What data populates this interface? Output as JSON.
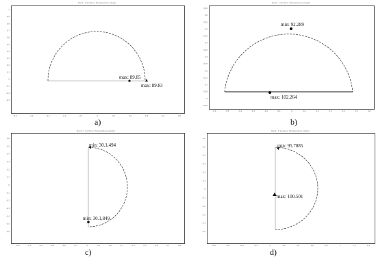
{
  "panels": [
    {
      "id": "a",
      "caption": "a)",
      "title": "Rank: 1  Surface: Temperature (degC)",
      "yticks": [
        "1",
        "0.9",
        "0.8",
        "0.7",
        "0.6",
        "0.5",
        "0.4",
        "0.3",
        "0.2",
        "0.1",
        "0",
        "-0.1",
        "-0.2",
        "-0.3"
      ],
      "xticks": [
        "-0.5",
        "-0.4",
        "-0.3",
        "-0.2",
        "-0.1",
        "0",
        "0.1",
        "0.2",
        "0.3",
        "0.4",
        "0.5"
      ],
      "annotations": [
        {
          "label": "max: 89.85"
        },
        {
          "label": "max: 89.83"
        }
      ]
    },
    {
      "id": "b",
      "caption": "b)",
      "title": "Rank: 1  Surface: Temperature (degC)",
      "yticks": [
        "0.65",
        "0.6",
        "0.55",
        "0.5",
        "0.45",
        "0.4",
        "0.35",
        "0.3",
        "0.25",
        "0.2",
        "0.15",
        "0.1",
        "0.05",
        "0",
        "-0.05"
      ],
      "xticks": [
        "-0.6",
        "-0.5",
        "-0.4",
        "-0.3",
        "-0.2",
        "-0.1",
        "0",
        "0.1",
        "0.2",
        "0.3",
        "0.4",
        "0.5",
        "0.6"
      ],
      "annotations": [
        {
          "label": "min: 92.289"
        },
        {
          "label": "max: 102.264"
        }
      ]
    },
    {
      "id": "c",
      "caption": "c)",
      "title": "Rank: 1  Surface: Temperature (degC)",
      "yticks": [
        "0.6",
        "0.5",
        "0.4",
        "0.3",
        "0.2",
        "0.1",
        "0",
        "-0.1",
        "-0.2",
        "-0.3",
        "-0.4",
        "-0.5",
        "-0.6"
      ],
      "xticks": [
        "-0.6",
        "-0.5",
        "-0.4",
        "-0.3",
        "-0.2",
        "-0.1",
        "0",
        "0.1",
        "0.2",
        "0.3",
        "0.4",
        "0.5",
        "0.6",
        "0.7",
        "0.8"
      ],
      "annotations": [
        {
          "label": "min: 30.1,494"
        },
        {
          "label": "min: 30.1,849"
        }
      ]
    },
    {
      "id": "d",
      "caption": "d)",
      "title": "Rank: 1  Surface: Temperature (degC)",
      "yticks": [
        "0.6",
        "0.5",
        "0.4",
        "0.3",
        "0.2",
        "0.1",
        "0",
        "-0.1",
        "-0.2",
        "-0.3",
        "-0.4",
        "-0.5"
      ],
      "xticks": [
        "-0.8",
        "-0.6",
        "-0.4",
        "-0.2",
        "0",
        "0.2",
        "0.4",
        "0.6",
        "0.8",
        "1",
        "1.2",
        "1.4"
      ],
      "annotations": [
        {
          "label": "min: 95.7885"
        },
        {
          "label": "max: 100.501"
        }
      ]
    }
  ]
}
